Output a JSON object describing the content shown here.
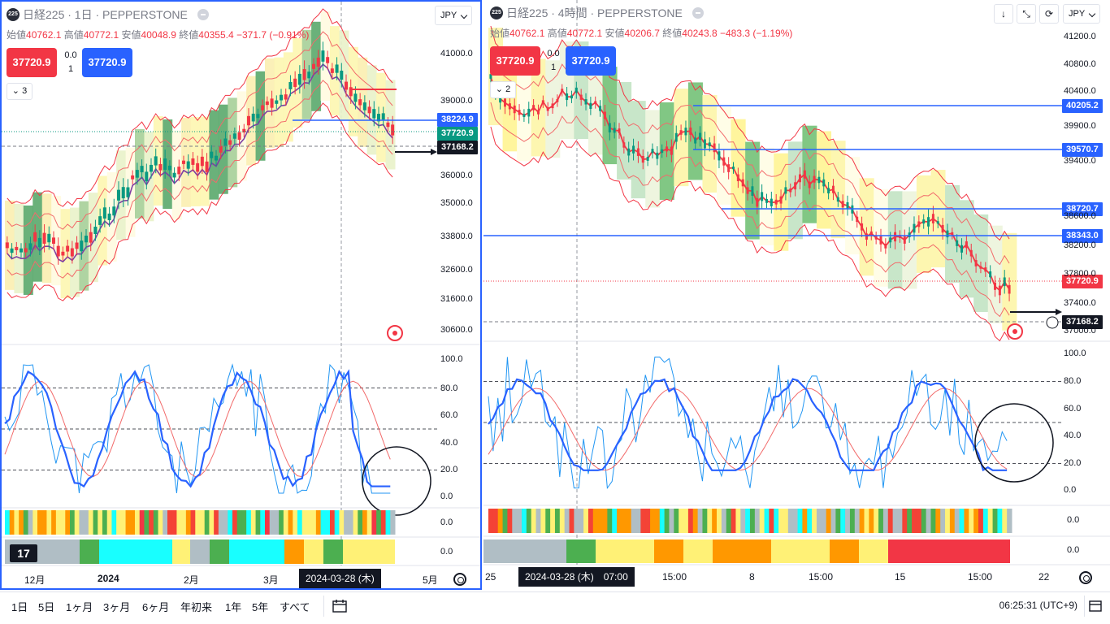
{
  "colors": {
    "up": "#089981",
    "down": "#f23645",
    "accent": "#2962ff",
    "text": "#131722",
    "muted": "#787b86",
    "grid": "#f0f3fa"
  },
  "left": {
    "logo": "225",
    "title": "日経225 · 1日 · PEPPERSTONE",
    "ohlc": {
      "o_label": "始値",
      "o": "40762.1",
      "h_label": "高値",
      "h": "40772.1",
      "l_label": "安値",
      "l": "40048.9",
      "c_label": "終値",
      "c": "40355.4",
      "chg": "−371.7 (−0.91%)"
    },
    "sell": "37720.9",
    "buy": "37720.9",
    "spread": "0.0",
    "qty": "1",
    "indicators_count": "3",
    "currency": "JPY",
    "price_axis": [
      "41000.0",
      "39000.0",
      "36000.0",
      "35000.0",
      "33800.0",
      "32600.0",
      "31600.0",
      "30600.0"
    ],
    "price_tags": {
      "blue": "38224.9",
      "green": "37720.9",
      "black": "37168.2"
    },
    "osc_axis": [
      "100.0",
      "80.0",
      "60.0",
      "40.0",
      "20.0",
      "0.0"
    ],
    "band_axis_1": "0.0",
    "band_axis_2": "0.0",
    "time_axis": [
      "12月",
      "2024",
      "2月",
      "3月",
      "5月"
    ],
    "cursor_time": "2024-03-28 (木)",
    "tv_logo": "17"
  },
  "right": {
    "logo": "225",
    "title": "日経225 · 4時間 · PEPPERSTONE",
    "ohlc": {
      "o_label": "始値",
      "o": "40762.1",
      "h_label": "高値",
      "h": "40772.1",
      "l_label": "安値",
      "l": "40206.7",
      "c_label": "終値",
      "c": "40243.8",
      "chg": "−483.3 (−1.19%)"
    },
    "sell": "37720.9",
    "buy": "37720.9",
    "spread": "0.0",
    "qty": "1",
    "indicators_count": "2",
    "currency": "JPY",
    "toolbar": [
      "↓",
      "⤡",
      "⟳"
    ],
    "price_axis": [
      "41200.0",
      "40800.0",
      "40400.0",
      "39900.0",
      "39400.0",
      "38600.0",
      "38200.0",
      "37800.0",
      "37400.0",
      "37000.0"
    ],
    "price_tags": [
      "40205.2",
      "39570.7",
      "38720.7",
      "38343.0"
    ],
    "last_price": "37720.9",
    "black_tag": "37168.2",
    "osc_axis": [
      "100.0",
      "80.0",
      "60.0",
      "40.0",
      "20.0",
      "0.0"
    ],
    "band_axis_1": "0.0",
    "band_axis_2": "0.0",
    "time_axis": [
      "25",
      "15:00",
      "8",
      "15:00",
      "15",
      "15:00",
      "22"
    ],
    "cursor_time": "2024-03-28 (木)　07:00"
  },
  "bottom": {
    "ranges": [
      "1日",
      "5日",
      "1ヶ月",
      "3ヶ月",
      "6ヶ月",
      "年初来",
      "1年",
      "5年",
      "すべて"
    ],
    "clock": "06:25:31 (UTC+9)"
  }
}
